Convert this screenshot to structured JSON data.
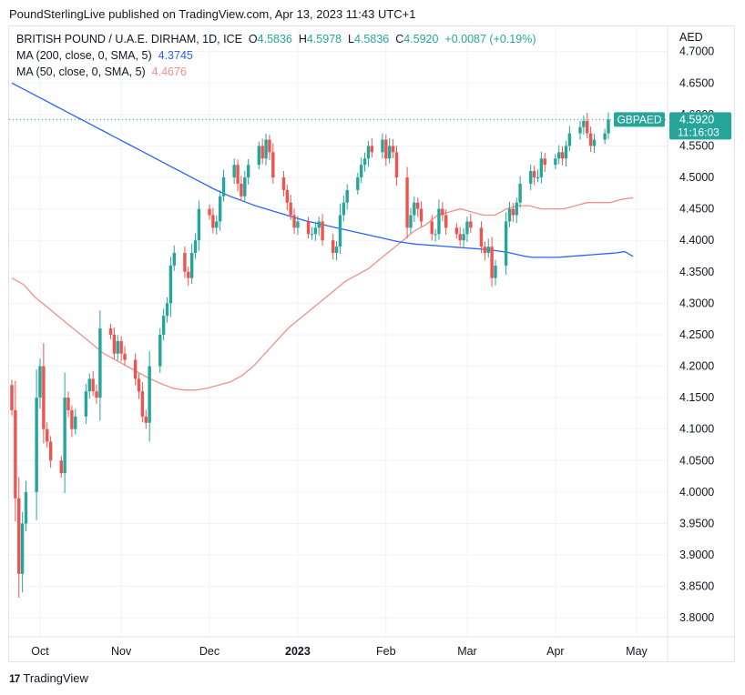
{
  "header": {
    "published": "PoundSterlingLive published on TradingView.com, Apr 13, 2023 11:43 UTC+1"
  },
  "legend": {
    "symbol": "BRITISH POUND / U.A.E. DIRHAM, 1D, ICE",
    "o_label": "O",
    "o_value": "4.5836",
    "h_label": "H",
    "h_value": "4.5978",
    "l_label": "L",
    "l_value": "4.5836",
    "c_label": "C",
    "c_value": "4.5920",
    "change": "+0.0087 (+0.19%)",
    "ma200_label": "MA (200, close, 0, SMA, 5)",
    "ma200_value": "4.3745",
    "ma50_label": "MA (50, close, 0, SMA, 5)",
    "ma50_value": "4.4676"
  },
  "footer": {
    "brand": "TradingView"
  },
  "colors": {
    "up": "#26a69a",
    "down": "#ef5350",
    "ma200": "#2962ff",
    "ma50": "#f0908b",
    "grid": "#f0f3fa"
  },
  "chart_data": {
    "type": "candlestick",
    "title": "BRITISH POUND / U.A.E. DIRHAM, 1D, ICE",
    "currency": "AED",
    "ylim": [
      3.77,
      4.74
    ],
    "y_ticks": [
      "4.7000",
      "4.6500",
      "4.6000",
      "4.5500",
      "4.5000",
      "4.4500",
      "4.4000",
      "4.3500",
      "4.3000",
      "4.2500",
      "4.2000",
      "4.1500",
      "4.1000",
      "4.0500",
      "4.0000",
      "3.9500",
      "3.9000",
      "3.8500",
      "3.8000"
    ],
    "x_labels": [
      "Oct",
      "Nov",
      "Dec",
      "2023",
      "Feb",
      "Mar",
      "Apr",
      "May"
    ],
    "x_label_day_index": [
      8,
      31,
      56,
      81,
      106,
      129,
      154,
      177
    ],
    "last_price": "4.5920",
    "last_price_level": 4.592,
    "countdown": "11:16:03",
    "symbol_tag": "GBPAED",
    "closes": [
      4.13,
      3.99,
      3.87,
      3.95,
      4.0,
      4.15,
      4.2,
      4.1,
      4.08,
      4.05,
      4.03,
      4.15,
      4.13,
      4.1,
      4.12,
      4.16,
      4.18,
      4.16,
      4.15,
      4.26,
      4.25,
      4.22,
      4.24,
      4.22,
      4.21,
      4.18,
      4.16,
      4.12,
      4.11,
      4.2,
      4.25,
      4.28,
      4.3,
      4.36,
      4.38,
      4.35,
      4.34,
      4.38,
      4.4,
      4.45,
      4.44,
      4.42,
      4.43,
      4.47,
      4.5,
      4.52,
      4.49,
      4.47,
      4.5,
      4.52,
      4.55,
      4.53,
      4.56,
      4.54,
      4.5,
      4.48,
      4.46,
      4.44,
      4.42,
      4.43,
      4.41,
      4.41,
      4.42,
      4.43,
      4.4,
      4.38,
      4.39,
      4.44,
      4.46,
      4.48,
      4.5,
      4.52,
      4.53,
      4.55,
      4.54,
      4.56,
      4.53,
      4.55,
      4.54,
      4.5,
      4.42,
      4.44,
      4.46,
      4.45,
      4.43,
      4.41,
      4.41,
      4.45,
      4.44,
      4.42,
      4.41,
      4.4,
      4.41,
      4.43,
      4.42,
      4.39,
      4.38,
      4.39,
      4.34,
      4.36,
      4.43,
      4.45,
      4.44,
      4.46,
      4.49,
      4.51,
      4.5,
      4.5,
      4.53,
      4.52,
      4.53,
      4.54,
      4.53,
      4.55,
      4.57,
      4.58,
      4.59,
      4.57,
      4.55,
      4.56,
      4.57,
      4.592
    ],
    "ma200": [
      4.65,
      4.643,
      4.636,
      4.629,
      4.622,
      4.615,
      4.608,
      4.601,
      4.594,
      4.587,
      4.58,
      4.573,
      4.566,
      4.559,
      4.552,
      4.545,
      4.538,
      4.531,
      4.524,
      4.517,
      4.51,
      4.503,
      4.496,
      4.489,
      4.482,
      4.476,
      4.47,
      4.465,
      4.46,
      4.455,
      4.451,
      4.447,
      4.443,
      4.439,
      4.435,
      4.431,
      4.428,
      4.425,
      4.422,
      4.419,
      4.416,
      4.413,
      4.41,
      4.407,
      4.404,
      4.401,
      4.398,
      4.396,
      4.394,
      4.393,
      4.392,
      4.391,
      4.39,
      4.389,
      4.388,
      4.387,
      4.386,
      4.385,
      4.383,
      4.381,
      4.378,
      4.375,
      4.373,
      4.373,
      4.373,
      4.373,
      4.374,
      4.375,
      4.376,
      4.377,
      4.378,
      4.379,
      4.38,
      4.382,
      4.3745
    ],
    "ma50": [
      4.34,
      4.33,
      4.31,
      4.295,
      4.28,
      4.265,
      4.25,
      4.235,
      4.22,
      4.21,
      4.2,
      4.19,
      4.18,
      4.172,
      4.165,
      4.162,
      4.162,
      4.165,
      4.17,
      4.175,
      4.185,
      4.2,
      4.22,
      4.24,
      4.26,
      4.275,
      4.29,
      4.305,
      4.32,
      4.335,
      4.345,
      4.355,
      4.37,
      4.385,
      4.4,
      4.415,
      4.425,
      4.44,
      4.445,
      4.45,
      4.445,
      4.44,
      4.44,
      4.45,
      4.455,
      4.455,
      4.45,
      4.45,
      4.45,
      4.455,
      4.46,
      4.46,
      4.46,
      4.465,
      4.4676
    ]
  }
}
